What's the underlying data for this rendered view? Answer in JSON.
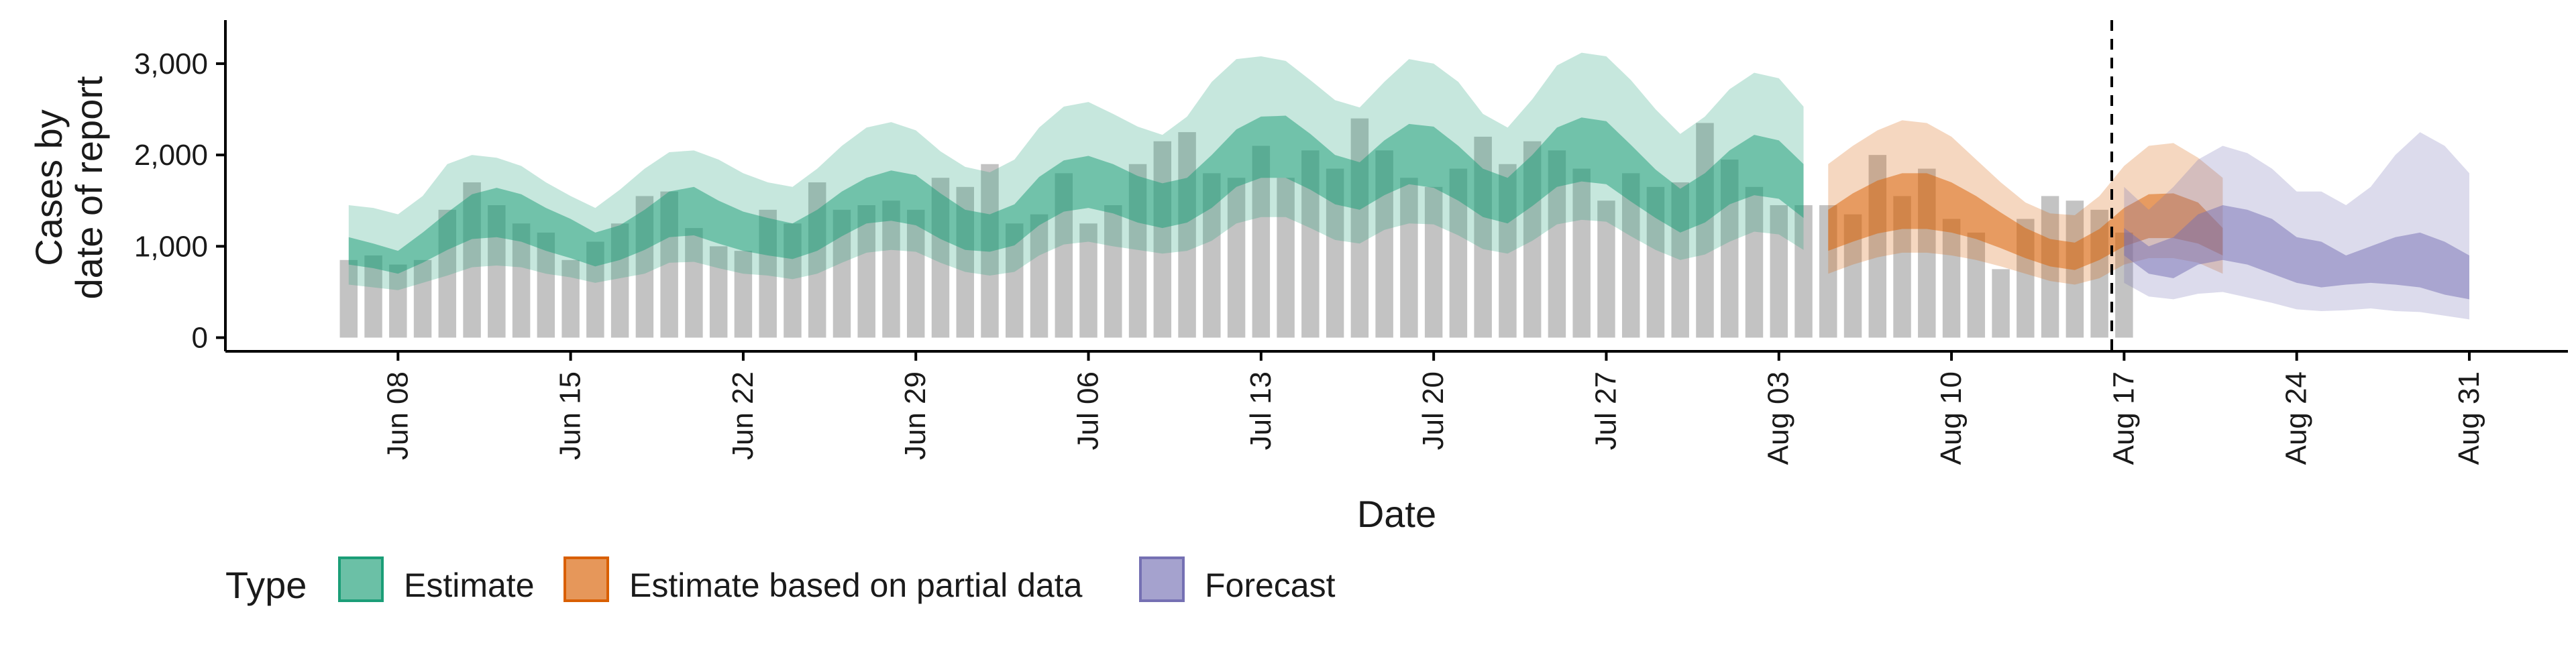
{
  "chart_data": {
    "type": "area",
    "title": "",
    "xlabel": "Date",
    "ylabel_lines": [
      "Cases by",
      "date of report"
    ],
    "x_range": [
      "2020-06-01",
      "2020-09-04"
    ],
    "ylim": [
      -150,
      3550
    ],
    "y_ticks": [
      0,
      1000,
      2000,
      3000
    ],
    "y_tick_labels": [
      "0",
      "1,000",
      "2,000",
      "3,000"
    ],
    "x_ticks": [
      "2020-06-08",
      "2020-06-15",
      "2020-06-22",
      "2020-06-29",
      "2020-07-06",
      "2020-07-13",
      "2020-07-20",
      "2020-07-27",
      "2020-08-03",
      "2020-08-10",
      "2020-08-17",
      "2020-08-24",
      "2020-08-31"
    ],
    "x_tick_labels": [
      "Jun 08",
      "Jun 15",
      "Jun 22",
      "Jun 29",
      "Jul 06",
      "Jul 13",
      "Jul 20",
      "Jul 27",
      "Aug 03",
      "Aug 10",
      "Aug 17",
      "Aug 24",
      "Aug 31"
    ],
    "grid": false,
    "forecast_date": "2020-08-16",
    "colors": {
      "Estimate": "#1b9e77",
      "Estimate based on partial data": "#d95f02",
      "Forecast": "#7570b3",
      "bars": "#bdbdbd"
    },
    "reported_cases": {
      "start": "2020-06-06",
      "values": [
        850,
        900,
        800,
        850,
        1400,
        1700,
        1450,
        1250,
        1150,
        850,
        1050,
        1250,
        1550,
        1600,
        1200,
        1000,
        950,
        1400,
        1250,
        1700,
        1400,
        1450,
        1500,
        1400,
        1750,
        1650,
        1900,
        1250,
        1350,
        1800,
        1250,
        1450,
        1900,
        2150,
        2250,
        1800,
        1750,
        2100,
        1750,
        2050,
        1850,
        2400,
        2050,
        1750,
        1650,
        1850,
        2200,
        1900,
        2150,
        2050,
        1850,
        1500,
        1800,
        1650,
        1700,
        2350,
        1950,
        1650,
        1450,
        1450,
        1450,
        1350,
        2000,
        1550,
        1850,
        1300,
        1150,
        750,
        1300,
        1550,
        1500,
        1400,
        1150
      ]
    },
    "series": [
      {
        "name": "Estimate",
        "start": "2020-06-06",
        "lower90": [
          580,
          550,
          520,
          600,
          680,
          770,
          790,
          770,
          700,
          660,
          600,
          650,
          700,
          820,
          830,
          760,
          700,
          680,
          640,
          700,
          820,
          930,
          960,
          940,
          820,
          720,
          680,
          720,
          900,
          1020,
          1050,
          1000,
          960,
          920,
          950,
          1060,
          1250,
          1320,
          1320,
          1200,
          1070,
          1030,
          1180,
          1250,
          1240,
          1120,
          970,
          920,
          1060,
          1240,
          1290,
          1270,
          1110,
          960,
          850,
          910,
          1050,
          1160,
          1130,
          960
        ],
        "lower50": [
          800,
          760,
          700,
          820,
          960,
          1080,
          1100,
          1050,
          950,
          870,
          780,
          850,
          960,
          1100,
          1120,
          1030,
          950,
          900,
          860,
          950,
          1110,
          1250,
          1280,
          1230,
          1080,
          960,
          940,
          1010,
          1230,
          1380,
          1420,
          1360,
          1260,
          1200,
          1260,
          1420,
          1650,
          1750,
          1750,
          1620,
          1460,
          1400,
          1560,
          1680,
          1640,
          1500,
          1320,
          1250,
          1440,
          1650,
          1710,
          1680,
          1490,
          1310,
          1150,
          1260,
          1460,
          1560,
          1520,
          1310
        ],
        "upper50": [
          1100,
          1030,
          950,
          1150,
          1370,
          1570,
          1640,
          1570,
          1420,
          1300,
          1150,
          1230,
          1400,
          1600,
          1650,
          1500,
          1380,
          1310,
          1250,
          1400,
          1600,
          1750,
          1830,
          1780,
          1580,
          1400,
          1350,
          1460,
          1760,
          1940,
          1990,
          1900,
          1770,
          1690,
          1750,
          2000,
          2280,
          2420,
          2430,
          2230,
          2000,
          1920,
          2160,
          2340,
          2310,
          2100,
          1850,
          1750,
          2000,
          2300,
          2410,
          2370,
          2110,
          1840,
          1630,
          1800,
          2050,
          2220,
          2160,
          1900
        ],
        "upper90": [
          1450,
          1420,
          1350,
          1550,
          1900,
          2000,
          1970,
          1880,
          1700,
          1550,
          1420,
          1620,
          1850,
          2030,
          2050,
          1950,
          1800,
          1700,
          1650,
          1850,
          2100,
          2300,
          2360,
          2270,
          2040,
          1870,
          1810,
          1950,
          2300,
          2530,
          2580,
          2450,
          2310,
          2220,
          2420,
          2800,
          3050,
          3080,
          3030,
          2820,
          2600,
          2520,
          2800,
          3050,
          3000,
          2800,
          2450,
          2300,
          2610,
          2980,
          3120,
          3080,
          2820,
          2500,
          2230,
          2420,
          2720,
          2900,
          2840,
          2530
        ]
      },
      {
        "name": "Estimate based on partial data",
        "start": "2020-08-05",
        "lower90": [
          700,
          800,
          880,
          930,
          930,
          900,
          850,
          780,
          700,
          620,
          580,
          650,
          800,
          870,
          870,
          820,
          700
        ],
        "lower50": [
          950,
          1050,
          1140,
          1190,
          1190,
          1150,
          1080,
          980,
          870,
          780,
          740,
          850,
          1000,
          1090,
          1090,
          1030,
          900
        ],
        "upper50": [
          1400,
          1580,
          1720,
          1800,
          1800,
          1700,
          1550,
          1370,
          1200,
          1080,
          1040,
          1190,
          1420,
          1570,
          1580,
          1480,
          1200
        ],
        "upper90": [
          1900,
          2100,
          2270,
          2380,
          2350,
          2200,
          1950,
          1700,
          1480,
          1360,
          1340,
          1550,
          1880,
          2100,
          2130,
          1970,
          1750
        ]
      },
      {
        "name": "Forecast",
        "start": "2020-08-17",
        "lower90": [
          600,
          450,
          420,
          480,
          500,
          440,
          380,
          310,
          290,
          300,
          320,
          290,
          280,
          240,
          200
        ],
        "lower50": [
          900,
          700,
          650,
          800,
          850,
          800,
          700,
          600,
          550,
          580,
          600,
          580,
          550,
          470,
          420
        ],
        "upper50": [
          1200,
          1000,
          1100,
          1350,
          1450,
          1400,
          1300,
          1100,
          1050,
          900,
          1000,
          1100,
          1150,
          1050,
          900
        ],
        "upper90": [
          1650,
          1400,
          1650,
          1950,
          2100,
          2020,
          1850,
          1600,
          1600,
          1450,
          1650,
          2000,
          2250,
          2100,
          1800
        ]
      }
    ],
    "legend": {
      "position": "bottom",
      "title": "Type",
      "entries": [
        "Estimate",
        "Estimate based on partial data",
        "Forecast"
      ]
    }
  }
}
